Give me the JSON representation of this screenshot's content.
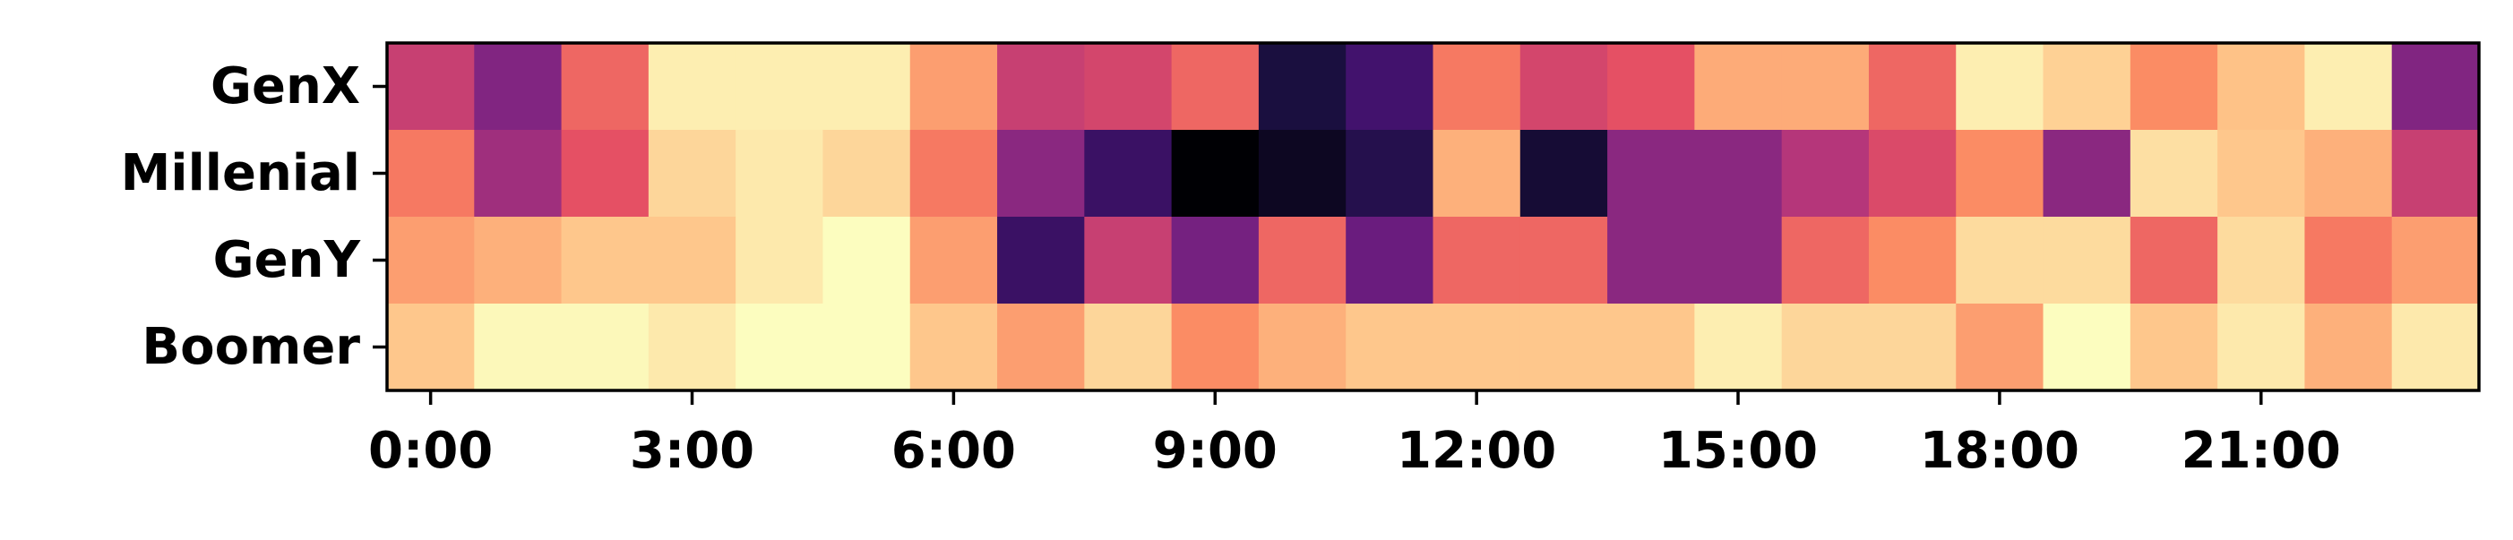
{
  "chart_data": {
    "type": "heatmap",
    "title": "",
    "xlabel": "",
    "ylabel": "",
    "rows": [
      "GenX",
      "Millenial",
      "GenY",
      "Boomer"
    ],
    "columns": [
      "0:00",
      "1:00",
      "2:00",
      "3:00",
      "4:00",
      "5:00",
      "6:00",
      "7:00",
      "8:00",
      "9:00",
      "10:00",
      "11:00",
      "12:00",
      "13:00",
      "14:00",
      "15:00",
      "16:00",
      "17:00",
      "18:00",
      "19:00",
      "20:00",
      "21:00",
      "22:00",
      "23:00"
    ],
    "x_tick_labels": [
      "0:00",
      "3:00",
      "6:00",
      "9:00",
      "12:00",
      "15:00",
      "18:00",
      "21:00"
    ],
    "x_tick_hours": [
      0,
      3,
      6,
      9,
      12,
      15,
      18,
      21
    ],
    "colormap": "magma",
    "values": [
      [
        0.55,
        0.38,
        0.68,
        0.97,
        0.97,
        0.97,
        0.8,
        0.55,
        0.58,
        0.68,
        0.12,
        0.22,
        0.72,
        0.58,
        0.63,
        0.83,
        0.83,
        0.68,
        0.97,
        0.91,
        0.76,
        0.88,
        0.97,
        0.38
      ],
      [
        0.72,
        0.45,
        0.63,
        0.92,
        0.96,
        0.92,
        0.72,
        0.4,
        0.2,
        0.0,
        0.06,
        0.15,
        0.84,
        0.1,
        0.4,
        0.4,
        0.5,
        0.6,
        0.76,
        0.4,
        0.94,
        0.89,
        0.84,
        0.55
      ],
      [
        0.8,
        0.84,
        0.89,
        0.89,
        0.96,
        1.0,
        0.8,
        0.2,
        0.55,
        0.35,
        0.68,
        0.32,
        0.68,
        0.68,
        0.4,
        0.4,
        0.68,
        0.76,
        0.93,
        0.93,
        0.68,
        0.93,
        0.72,
        0.8
      ],
      [
        0.89,
        0.99,
        0.99,
        0.96,
        1.0,
        1.0,
        0.89,
        0.8,
        0.92,
        0.76,
        0.84,
        0.89,
        0.89,
        0.89,
        0.89,
        0.97,
        0.92,
        0.92,
        0.8,
        1.0,
        0.89,
        0.96,
        0.84,
        0.96
      ]
    ],
    "grid": false,
    "legend": "none"
  }
}
